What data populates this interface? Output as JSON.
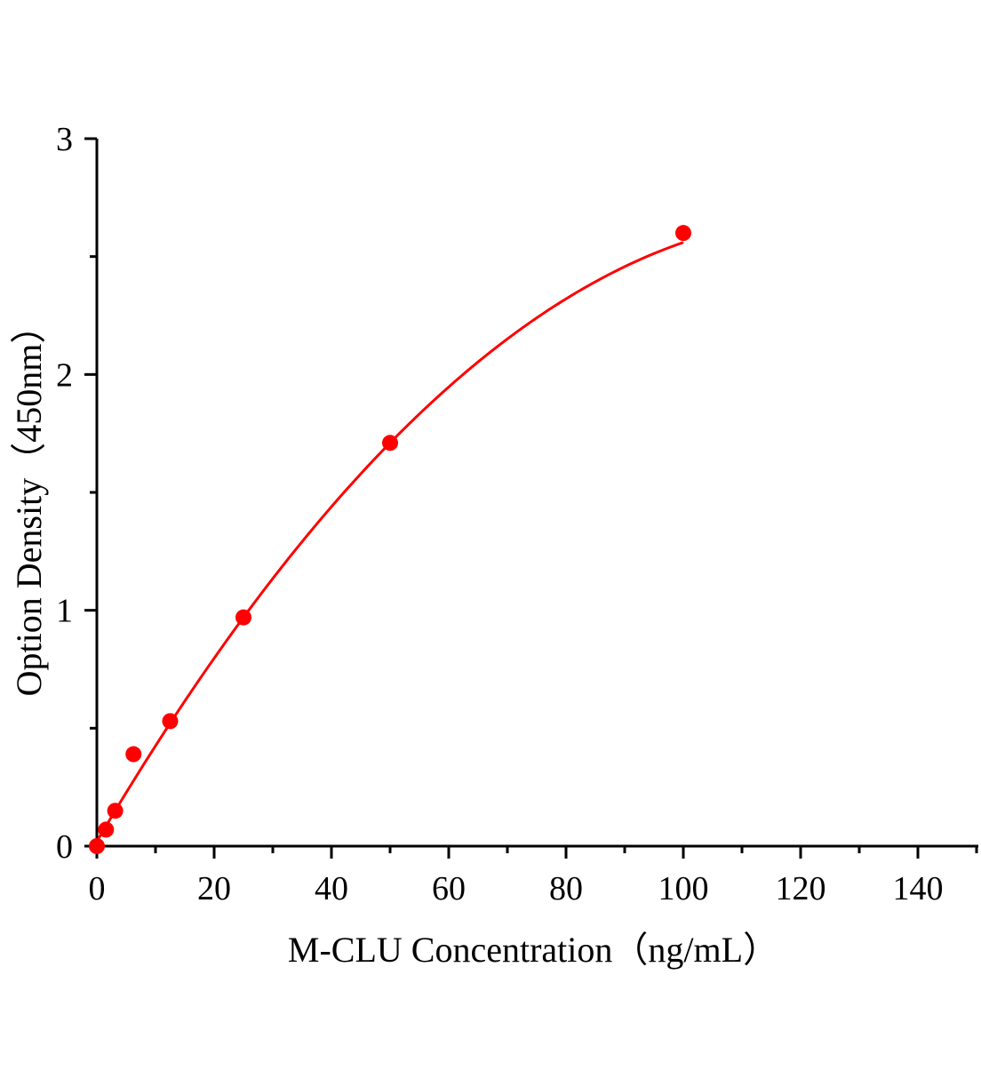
{
  "chart_data": {
    "type": "scatter",
    "title": "",
    "xlabel": "M-CLU Concentration（ng/mL）",
    "ylabel": "Option Density（450nm）",
    "xlim": [
      0,
      150
    ],
    "ylim": [
      0,
      3
    ],
    "xticks": [
      0,
      20,
      40,
      60,
      80,
      100,
      120,
      140
    ],
    "yticks": [
      0,
      1,
      2,
      3
    ],
    "grid": false,
    "color": "#ff0000",
    "points": {
      "x": [
        0,
        1.5625,
        3.125,
        6.25,
        12.5,
        25,
        50,
        100
      ],
      "y": [
        0.0,
        0.07,
        0.15,
        0.39,
        0.53,
        0.97,
        1.71,
        2.6
      ]
    },
    "fit": {
      "type": "curve",
      "x_range": [
        0,
        100
      ]
    }
  }
}
